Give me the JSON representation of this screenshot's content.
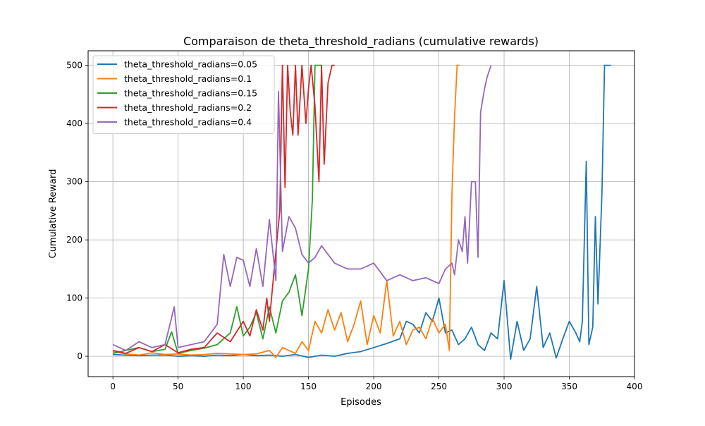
{
  "chart_data": {
    "type": "line",
    "title": "Comparaison de theta_threshold_radians (cumulative rewards)",
    "xlabel": "Episodes",
    "ylabel": "Cumulative Reward",
    "xlim": [
      -19,
      400
    ],
    "ylim": [
      -35,
      525
    ],
    "xticks": [
      0,
      50,
      100,
      150,
      200,
      250,
      300,
      350,
      400
    ],
    "yticks": [
      0,
      100,
      200,
      300,
      400,
      500
    ],
    "grid": true,
    "legend_position": "top-left",
    "series": [
      {
        "name": "theta_threshold_radians=0.05",
        "color": "#1f77b4",
        "x": [
          0,
          10,
          20,
          30,
          40,
          50,
          60,
          70,
          80,
          90,
          100,
          110,
          120,
          130,
          140,
          150,
          160,
          170,
          180,
          190,
          200,
          210,
          220,
          225,
          230,
          235,
          240,
          245,
          250,
          255,
          260,
          265,
          270,
          275,
          280,
          285,
          290,
          295,
          300,
          305,
          310,
          315,
          320,
          325,
          330,
          335,
          340,
          345,
          350,
          355,
          358,
          360,
          363,
          365,
          368,
          370,
          372,
          375,
          377,
          380,
          382
        ],
        "values": [
          3,
          2,
          1,
          2,
          2,
          0,
          1,
          0,
          2,
          1,
          3,
          1,
          2,
          0,
          3,
          -2,
          2,
          0,
          5,
          8,
          15,
          22,
          30,
          60,
          55,
          40,
          75,
          60,
          100,
          40,
          45,
          20,
          30,
          50,
          20,
          10,
          40,
          30,
          130,
          -5,
          60,
          10,
          30,
          120,
          15,
          40,
          -3,
          30,
          60,
          40,
          25,
          60,
          335,
          20,
          50,
          240,
          90,
          280,
          500,
          500,
          500
        ]
      },
      {
        "name": "theta_threshold_radians=0.1",
        "color": "#ff7f0e",
        "x": [
          0,
          10,
          20,
          30,
          40,
          50,
          60,
          70,
          80,
          90,
          100,
          110,
          120,
          125,
          130,
          140,
          145,
          150,
          155,
          160,
          165,
          170,
          175,
          180,
          185,
          190,
          195,
          200,
          205,
          210,
          215,
          220,
          225,
          230,
          235,
          240,
          245,
          250,
          255,
          258,
          260,
          262,
          264,
          266
        ],
        "values": [
          8,
          4,
          2,
          6,
          3,
          4,
          2,
          3,
          5,
          4,
          3,
          4,
          10,
          -2,
          15,
          5,
          25,
          10,
          60,
          40,
          80,
          45,
          75,
          25,
          55,
          95,
          20,
          70,
          40,
          130,
          35,
          60,
          20,
          45,
          50,
          30,
          65,
          40,
          55,
          10,
          280,
          410,
          500,
          500
        ]
      },
      {
        "name": "theta_threshold_radians=0.15",
        "color": "#2ca02c",
        "x": [
          0,
          10,
          20,
          30,
          40,
          45,
          50,
          60,
          70,
          80,
          90,
          95,
          100,
          105,
          110,
          115,
          120,
          125,
          130,
          135,
          140,
          145,
          150,
          153,
          155,
          157,
          160
        ],
        "values": [
          5,
          10,
          15,
          8,
          12,
          42,
          5,
          10,
          14,
          20,
          40,
          85,
          35,
          50,
          75,
          30,
          85,
          40,
          95,
          110,
          140,
          70,
          150,
          270,
          500,
          500,
          500
        ],
        "comment": ""
      },
      {
        "name": "theta_threshold_radians=0.2",
        "color": "#d62728",
        "x": [
          0,
          10,
          20,
          30,
          40,
          50,
          60,
          70,
          80,
          90,
          100,
          105,
          110,
          115,
          118,
          120,
          125,
          128,
          130,
          132,
          134,
          136,
          138,
          140,
          142,
          145,
          148,
          150,
          152,
          155,
          158,
          160,
          162,
          165,
          168,
          170
        ],
        "values": [
          10,
          5,
          15,
          8,
          20,
          6,
          12,
          15,
          40,
          25,
          60,
          35,
          80,
          45,
          100,
          60,
          180,
          250,
          500,
          290,
          500,
          420,
          380,
          500,
          380,
          500,
          400,
          460,
          500,
          430,
          300,
          500,
          330,
          470,
          500,
          500
        ]
      },
      {
        "name": "theta_threshold_radians=0.4",
        "color": "#9467bd",
        "x": [
          0,
          10,
          20,
          30,
          40,
          47,
          50,
          60,
          70,
          75,
          80,
          85,
          90,
          95,
          100,
          105,
          110,
          115,
          120,
          125,
          127,
          130,
          135,
          140,
          145,
          150,
          155,
          160,
          170,
          180,
          190,
          200,
          210,
          220,
          230,
          240,
          250,
          255,
          260,
          262,
          265,
          268,
          270,
          272,
          275,
          278,
          280,
          282,
          285,
          287,
          290
        ],
        "values": [
          20,
          10,
          25,
          15,
          20,
          85,
          15,
          20,
          25,
          40,
          55,
          175,
          120,
          170,
          165,
          120,
          185,
          120,
          235,
          130,
          455,
          180,
          240,
          220,
          175,
          160,
          170,
          190,
          160,
          150,
          150,
          160,
          130,
          140,
          130,
          135,
          125,
          150,
          160,
          140,
          200,
          180,
          240,
          160,
          300,
          300,
          170,
          420,
          460,
          480,
          500
        ]
      }
    ]
  }
}
